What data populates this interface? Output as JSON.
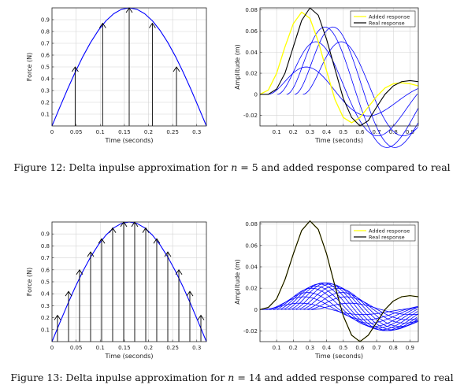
{
  "figures": [
    {
      "caption": {
        "label": "Figure 12:",
        "pre": "Delta inpulse approximation for",
        "var": "n",
        "eq": " = 5 and added response compared to real"
      },
      "n": 5
    },
    {
      "caption": {
        "label": "Figure 13:",
        "pre": "Delta inpulse approximation for",
        "var": "n",
        "eq": " = 14 and added response compared to real"
      },
      "n": 14
    }
  ],
  "chart_data": [
    {
      "type": "line",
      "id": "force-n5",
      "xlabel": "Time (seconds)",
      "ylabel": "Force (N)",
      "xlim": [
        0,
        0.32
      ],
      "ylim": [
        0,
        1
      ],
      "xticks": [
        0,
        0.05,
        0.1,
        0.15,
        0.2,
        0.25,
        0.3
      ],
      "xtick_labels": [
        "0",
        "0.05",
        "0.1",
        "0.15",
        "0.2",
        "0.25",
        "0.3"
      ],
      "yticks": [
        0.1,
        0.2,
        0.3,
        0.4,
        0.5,
        0.6,
        0.7,
        0.8,
        0.9
      ],
      "ytick_labels": [
        "0.1",
        "0.2",
        "0.3",
        "0.4",
        "0.5",
        "0.6",
        "0.7",
        "0.8",
        "0.9"
      ],
      "grid": true,
      "curve": {
        "color": "#0000ff",
        "x": [
          0,
          0.016,
          0.032,
          0.048,
          0.064,
          0.08,
          0.096,
          0.112,
          0.128,
          0.144,
          0.16,
          0.176,
          0.192,
          0.208,
          0.224,
          0.24,
          0.256,
          0.272,
          0.288,
          0.304,
          0.32
        ],
        "y": [
          0,
          0.156,
          0.309,
          0.454,
          0.588,
          0.707,
          0.809,
          0.891,
          0.951,
          0.988,
          1.0,
          0.988,
          0.951,
          0.891,
          0.809,
          0.707,
          0.588,
          0.454,
          0.309,
          0.156,
          0
        ]
      },
      "impulses": {
        "color": "#000000",
        "x": [
          0.048,
          0.105,
          0.16,
          0.208,
          0.258
        ],
        "y": [
          0.5,
          0.87,
          1.0,
          0.87,
          0.5
        ]
      }
    },
    {
      "type": "line",
      "id": "response-n5",
      "xlabel": "Time (seconds)",
      "ylabel": "Amplitude (m)",
      "xlim": [
        0,
        0.95
      ],
      "ylim": [
        -0.03,
        0.082
      ],
      "xticks": [
        0.1,
        0.2,
        0.3,
        0.4,
        0.5,
        0.6,
        0.7,
        0.8,
        0.9
      ],
      "xtick_labels": [
        "0.1",
        "0.2",
        "0.3",
        "0.4",
        "0.5",
        "0.6",
        "0.7",
        "0.8",
        "0.9"
      ],
      "yticks": [
        -0.02,
        0,
        0.02,
        0.04,
        0.06,
        0.08
      ],
      "ytick_labels": [
        "-0.02",
        "0",
        "0.02",
        "0.04",
        "0.06",
        "0.08"
      ],
      "grid": true,
      "legend": {
        "position": "top-right",
        "entries": [
          {
            "label": "Added response",
            "color": "#ffff00"
          },
          {
            "label": "Real response",
            "color": "#000000"
          }
        ]
      },
      "series": [
        {
          "name": "Added response",
          "color": "#ffff00",
          "x": [
            0,
            0.05,
            0.1,
            0.15,
            0.2,
            0.25,
            0.3,
            0.35,
            0.4,
            0.45,
            0.5,
            0.55,
            0.6,
            0.65,
            0.7,
            0.75,
            0.8,
            0.85,
            0.9,
            0.95
          ],
          "y": [
            0,
            0.004,
            0.02,
            0.045,
            0.067,
            0.078,
            0.072,
            0.05,
            0.022,
            -0.005,
            -0.022,
            -0.027,
            -0.022,
            -0.012,
            -0.002,
            0.006,
            0.01,
            0.011,
            0.01,
            0.008
          ]
        },
        {
          "name": "Real response",
          "color": "#000000",
          "x": [
            0,
            0.05,
            0.1,
            0.15,
            0.2,
            0.25,
            0.3,
            0.35,
            0.4,
            0.45,
            0.5,
            0.55,
            0.6,
            0.65,
            0.7,
            0.75,
            0.8,
            0.85,
            0.9,
            0.95
          ],
          "y": [
            0,
            0.0,
            0.005,
            0.02,
            0.045,
            0.07,
            0.082,
            0.075,
            0.052,
            0.024,
            -0.004,
            -0.022,
            -0.03,
            -0.025,
            -0.012,
            0.0,
            0.008,
            0.012,
            0.013,
            0.012
          ]
        }
      ],
      "components": {
        "color": "#0000ff",
        "count": 5,
        "shifts": [
          0.048,
          0.105,
          0.16,
          0.208,
          0.258
        ],
        "amplitudes": [
          0.013,
          0.025,
          0.032,
          0.032,
          0.025
        ]
      }
    },
    {
      "type": "line",
      "id": "force-n14",
      "xlabel": "Time (seconds)",
      "ylabel": "Force (N)",
      "xlim": [
        0,
        0.32
      ],
      "ylim": [
        0,
        1
      ],
      "xticks": [
        0,
        0.05,
        0.1,
        0.15,
        0.2,
        0.25,
        0.3
      ],
      "xtick_labels": [
        "0",
        "0.05",
        "0.1",
        "0.15",
        "0.2",
        "0.25",
        "0.3"
      ],
      "yticks": [
        0.1,
        0.2,
        0.3,
        0.4,
        0.5,
        0.6,
        0.7,
        0.8,
        0.9
      ],
      "ytick_labels": [
        "0.1",
        "0.2",
        "0.3",
        "0.4",
        "0.5",
        "0.6",
        "0.7",
        "0.8",
        "0.9"
      ],
      "grid": true,
      "curve": {
        "color": "#0000ff",
        "x": [
          0,
          0.016,
          0.032,
          0.048,
          0.064,
          0.08,
          0.096,
          0.112,
          0.128,
          0.144,
          0.16,
          0.176,
          0.192,
          0.208,
          0.224,
          0.24,
          0.256,
          0.272,
          0.288,
          0.304,
          0.32
        ],
        "y": [
          0,
          0.156,
          0.309,
          0.454,
          0.588,
          0.707,
          0.809,
          0.891,
          0.951,
          0.988,
          1.0,
          0.988,
          0.951,
          0.891,
          0.809,
          0.707,
          0.588,
          0.454,
          0.309,
          0.156,
          0
        ]
      },
      "impulses": {
        "color": "#000000",
        "x": [
          0.0114,
          0.0343,
          0.0571,
          0.08,
          0.1029,
          0.1257,
          0.1486,
          0.1714,
          0.1943,
          0.2171,
          0.24,
          0.2629,
          0.2857,
          0.3086
        ],
        "y": [
          0.22,
          0.42,
          0.6,
          0.75,
          0.86,
          0.95,
          1.0,
          1.0,
          0.95,
          0.86,
          0.75,
          0.6,
          0.42,
          0.22
        ]
      }
    },
    {
      "type": "line",
      "id": "response-n14",
      "xlabel": "Time (seconds)",
      "ylabel": "Amplitude (m)",
      "xlim": [
        0,
        0.95
      ],
      "ylim": [
        -0.03,
        0.082
      ],
      "xticks": [
        0.1,
        0.2,
        0.3,
        0.4,
        0.5,
        0.6,
        0.7,
        0.8,
        0.9
      ],
      "xtick_labels": [
        "0.1",
        "0.2",
        "0.3",
        "0.4",
        "0.5",
        "0.6",
        "0.7",
        "0.8",
        "0.9"
      ],
      "yticks": [
        -0.02,
        0,
        0.02,
        0.04,
        0.06,
        0.08
      ],
      "ytick_labels": [
        "-0.02",
        "0",
        "0.02",
        "0.04",
        "0.06",
        "0.08"
      ],
      "grid": true,
      "legend": {
        "position": "top-right",
        "entries": [
          {
            "label": "Added response",
            "color": "#ffff00"
          },
          {
            "label": "Real response",
            "color": "#000000"
          }
        ]
      },
      "series": [
        {
          "name": "Added response",
          "color": "#ffff00",
          "x": [
            0,
            0.05,
            0.1,
            0.15,
            0.2,
            0.25,
            0.3,
            0.35,
            0.4,
            0.45,
            0.5,
            0.55,
            0.6,
            0.65,
            0.7,
            0.75,
            0.8,
            0.85,
            0.9,
            0.95
          ],
          "y": [
            0,
            0.002,
            0.01,
            0.028,
            0.052,
            0.074,
            0.083,
            0.075,
            0.052,
            0.022,
            -0.006,
            -0.024,
            -0.03,
            -0.024,
            -0.012,
            0.0,
            0.008,
            0.012,
            0.013,
            0.012
          ]
        },
        {
          "name": "Real response",
          "color": "#000000",
          "x": [
            0,
            0.05,
            0.1,
            0.15,
            0.2,
            0.25,
            0.3,
            0.35,
            0.4,
            0.45,
            0.5,
            0.55,
            0.6,
            0.65,
            0.7,
            0.75,
            0.8,
            0.85,
            0.9,
            0.95
          ],
          "y": [
            0,
            0.002,
            0.01,
            0.028,
            0.052,
            0.074,
            0.083,
            0.075,
            0.052,
            0.022,
            -0.006,
            -0.024,
            -0.03,
            -0.024,
            -0.012,
            0.0,
            0.008,
            0.012,
            0.013,
            0.012
          ]
        }
      ],
      "components": {
        "color": "#0000ff",
        "count": 14,
        "shifts": [
          0.0114,
          0.0343,
          0.0571,
          0.08,
          0.1029,
          0.1257,
          0.1486,
          0.1714,
          0.1943,
          0.2171,
          0.24,
          0.2629,
          0.2857,
          0.3086
        ],
        "amplitudes": [
          0.003,
          0.006,
          0.008,
          0.01,
          0.011,
          0.012,
          0.0125,
          0.0125,
          0.012,
          0.011,
          0.01,
          0.008,
          0.006,
          0.003
        ]
      }
    }
  ]
}
